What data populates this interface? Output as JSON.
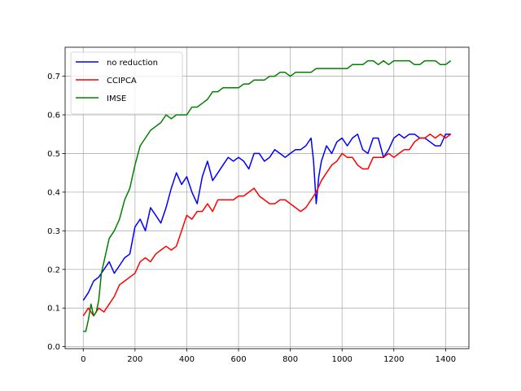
{
  "chart_data": {
    "type": "line",
    "title": "",
    "xlabel": "",
    "ylabel": "",
    "xlim": [
      -70,
      1490
    ],
    "ylim": [
      -0.005,
      0.775
    ],
    "xticks": [
      0,
      200,
      400,
      600,
      800,
      1000,
      1200,
      1400
    ],
    "yticks": [
      0.0,
      0.1,
      0.2,
      0.3,
      0.4,
      0.5,
      0.6,
      0.7
    ],
    "grid": true,
    "legend_position": "top-left",
    "series": [
      {
        "name": "no reduction",
        "color": "#0000ff",
        "x": [
          0,
          20,
          40,
          60,
          80,
          100,
          120,
          140,
          160,
          180,
          200,
          220,
          240,
          260,
          280,
          300,
          320,
          340,
          360,
          380,
          400,
          420,
          440,
          460,
          480,
          500,
          520,
          540,
          560,
          580,
          600,
          620,
          640,
          660,
          680,
          700,
          720,
          740,
          760,
          780,
          800,
          820,
          840,
          860,
          880,
          890,
          900,
          910,
          920,
          940,
          960,
          980,
          1000,
          1020,
          1040,
          1060,
          1080,
          1100,
          1120,
          1140,
          1160,
          1180,
          1200,
          1220,
          1240,
          1260,
          1280,
          1300,
          1320,
          1340,
          1360,
          1380,
          1400,
          1420
        ],
        "y": [
          0.12,
          0.14,
          0.17,
          0.18,
          0.2,
          0.22,
          0.19,
          0.21,
          0.23,
          0.24,
          0.31,
          0.33,
          0.3,
          0.36,
          0.34,
          0.32,
          0.36,
          0.41,
          0.45,
          0.42,
          0.44,
          0.4,
          0.37,
          0.44,
          0.48,
          0.43,
          0.45,
          0.47,
          0.49,
          0.48,
          0.49,
          0.48,
          0.46,
          0.5,
          0.5,
          0.48,
          0.49,
          0.51,
          0.5,
          0.49,
          0.5,
          0.51,
          0.51,
          0.52,
          0.54,
          0.48,
          0.37,
          0.44,
          0.48,
          0.52,
          0.5,
          0.53,
          0.54,
          0.52,
          0.54,
          0.55,
          0.51,
          0.5,
          0.54,
          0.54,
          0.49,
          0.51,
          0.54,
          0.55,
          0.54,
          0.55,
          0.55,
          0.54,
          0.54,
          0.53,
          0.52,
          0.52,
          0.55,
          0.55
        ]
      },
      {
        "name": "CCIPCA",
        "color": "#ff0000",
        "x": [
          0,
          20,
          40,
          60,
          80,
          100,
          120,
          140,
          160,
          180,
          200,
          220,
          240,
          260,
          280,
          300,
          320,
          340,
          360,
          380,
          400,
          420,
          440,
          460,
          480,
          500,
          520,
          540,
          560,
          580,
          600,
          620,
          640,
          660,
          680,
          700,
          720,
          740,
          760,
          780,
          800,
          820,
          840,
          860,
          880,
          900,
          920,
          940,
          960,
          980,
          1000,
          1020,
          1040,
          1060,
          1080,
          1100,
          1120,
          1140,
          1160,
          1180,
          1200,
          1220,
          1240,
          1260,
          1280,
          1300,
          1320,
          1340,
          1360,
          1380,
          1400,
          1420
        ],
        "y": [
          0.08,
          0.1,
          0.08,
          0.1,
          0.09,
          0.11,
          0.13,
          0.16,
          0.17,
          0.18,
          0.19,
          0.22,
          0.23,
          0.22,
          0.24,
          0.25,
          0.26,
          0.25,
          0.26,
          0.3,
          0.34,
          0.33,
          0.35,
          0.35,
          0.37,
          0.35,
          0.38,
          0.38,
          0.38,
          0.38,
          0.39,
          0.39,
          0.4,
          0.41,
          0.39,
          0.38,
          0.37,
          0.37,
          0.38,
          0.38,
          0.37,
          0.36,
          0.35,
          0.36,
          0.38,
          0.4,
          0.43,
          0.45,
          0.47,
          0.48,
          0.5,
          0.49,
          0.49,
          0.47,
          0.46,
          0.46,
          0.49,
          0.49,
          0.49,
          0.5,
          0.49,
          0.5,
          0.51,
          0.51,
          0.53,
          0.54,
          0.54,
          0.55,
          0.54,
          0.55,
          0.54,
          0.55
        ]
      },
      {
        "name": "IMSE",
        "color": "#008000",
        "x": [
          0,
          10,
          20,
          30,
          40,
          50,
          60,
          70,
          80,
          100,
          120,
          140,
          160,
          180,
          200,
          220,
          240,
          260,
          280,
          300,
          320,
          340,
          360,
          380,
          400,
          420,
          440,
          460,
          480,
          500,
          520,
          540,
          560,
          580,
          600,
          620,
          640,
          660,
          680,
          700,
          720,
          740,
          760,
          780,
          800,
          820,
          840,
          860,
          880,
          900,
          920,
          940,
          960,
          980,
          1000,
          1020,
          1040,
          1060,
          1080,
          1100,
          1120,
          1140,
          1160,
          1180,
          1200,
          1220,
          1240,
          1260,
          1280,
          1300,
          1320,
          1340,
          1360,
          1380,
          1400,
          1420
        ],
        "y": [
          0.04,
          0.04,
          0.07,
          0.11,
          0.08,
          0.09,
          0.12,
          0.19,
          0.22,
          0.28,
          0.3,
          0.33,
          0.38,
          0.41,
          0.47,
          0.52,
          0.54,
          0.56,
          0.57,
          0.58,
          0.6,
          0.59,
          0.6,
          0.6,
          0.6,
          0.62,
          0.62,
          0.63,
          0.64,
          0.66,
          0.66,
          0.67,
          0.67,
          0.67,
          0.67,
          0.68,
          0.68,
          0.69,
          0.69,
          0.69,
          0.7,
          0.7,
          0.71,
          0.71,
          0.7,
          0.71,
          0.71,
          0.71,
          0.71,
          0.72,
          0.72,
          0.72,
          0.72,
          0.72,
          0.72,
          0.72,
          0.73,
          0.73,
          0.73,
          0.74,
          0.74,
          0.73,
          0.74,
          0.73,
          0.74,
          0.74,
          0.74,
          0.74,
          0.73,
          0.73,
          0.74,
          0.74,
          0.74,
          0.73,
          0.73,
          0.74
        ]
      }
    ]
  }
}
